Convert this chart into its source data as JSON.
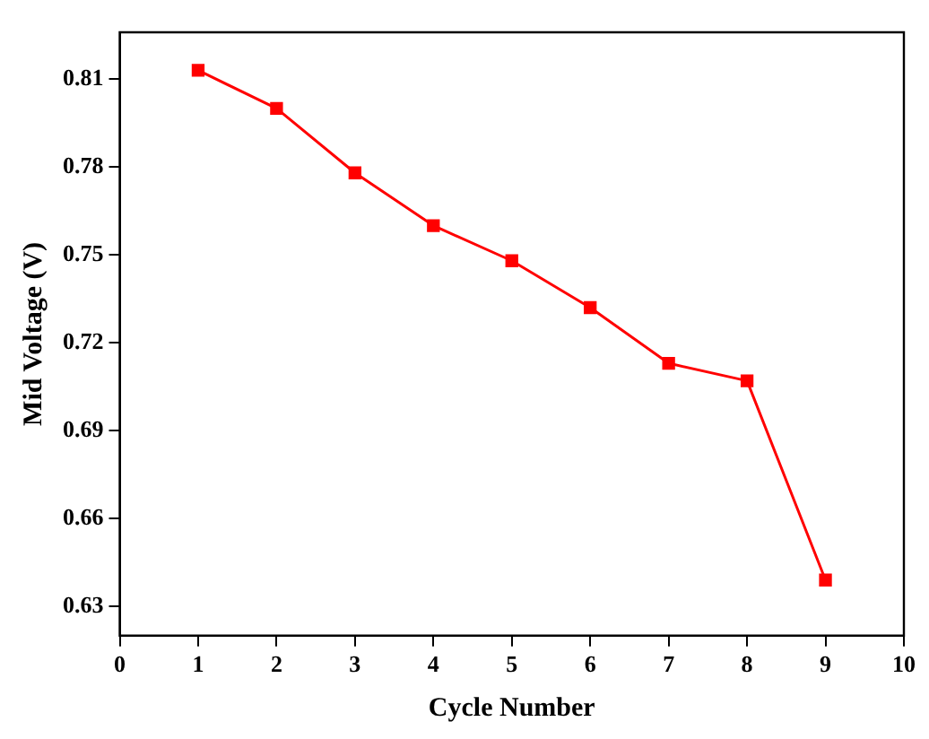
{
  "chart_data": {
    "type": "line",
    "xlabel": "Cycle Number",
    "ylabel": "Mid Voltage (V)",
    "x": [
      1,
      2,
      3,
      4,
      5,
      6,
      7,
      8,
      9
    ],
    "series": [
      {
        "color": "#ff0000",
        "values": [
          0.813,
          0.8,
          0.778,
          0.76,
          0.748,
          0.732,
          0.713,
          0.707,
          0.639
        ]
      }
    ],
    "xlim": [
      0,
      10
    ],
    "xticks": [
      0,
      1,
      2,
      3,
      4,
      5,
      6,
      7,
      8,
      9,
      10
    ],
    "ylim": [
      0.62,
      0.826
    ],
    "yticks": [
      0.63,
      0.66,
      0.69,
      0.72,
      0.75,
      0.78,
      0.81
    ],
    "grid": false,
    "legend": false,
    "marker": "square",
    "line_style": "solid"
  }
}
